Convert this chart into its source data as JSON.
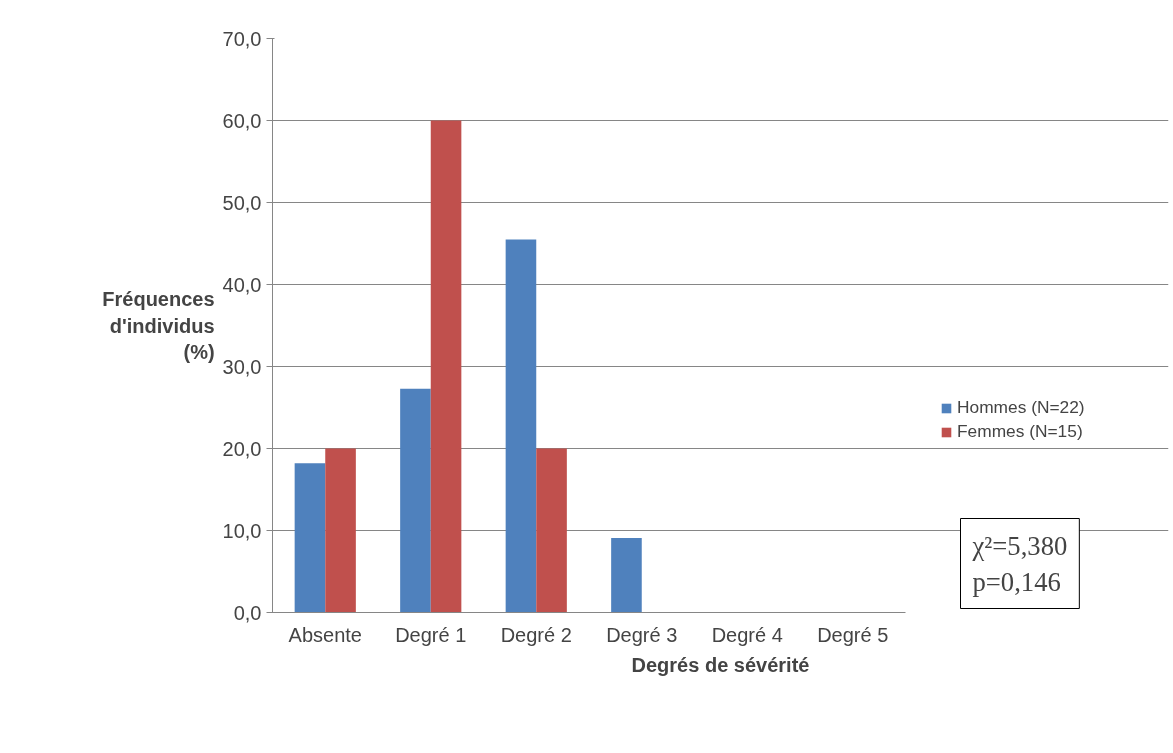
{
  "chart_data": {
    "type": "bar",
    "xlabel": "Degrés de sévérité",
    "ylabel": "Fréquences d'individus (%)",
    "categories": [
      "Absente",
      "Degré 1",
      "Degré 2",
      "Degré 3",
      "Degré 4",
      "Degré 5"
    ],
    "series": [
      {
        "name": "Hommes (N=22)",
        "color": "#4f81bd",
        "values": [
          18.2,
          27.3,
          45.5,
          9.1,
          0,
          0
        ]
      },
      {
        "name": "Femmes (N=15)",
        "color": "#c0504d",
        "values": [
          20.0,
          60.0,
          20.0,
          0,
          0,
          0
        ]
      }
    ],
    "ylim": [
      0,
      70
    ],
    "yticks": [
      {
        "value": 0,
        "label": "0,0"
      },
      {
        "value": 10,
        "label": "10,0"
      },
      {
        "value": 20,
        "label": "20,0"
      },
      {
        "value": 30,
        "label": "30,0"
      },
      {
        "value": 40,
        "label": "40,0"
      },
      {
        "value": 50,
        "label": "50,0"
      },
      {
        "value": 60,
        "label": "60,0"
      },
      {
        "value": 70,
        "label": "70,0"
      }
    ],
    "grid": "y",
    "legend": "right",
    "annotations": [
      "χ²=5,380",
      "p=0,146"
    ]
  }
}
